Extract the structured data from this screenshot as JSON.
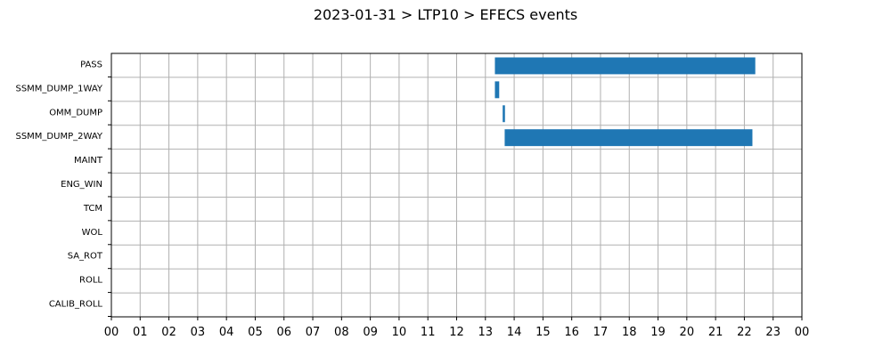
{
  "chart_data": {
    "type": "bar",
    "orientation": "horizontal-timeline",
    "title": "2023-01-31 > LTP10 > EFECS events",
    "xlabel": "",
    "ylabel": "",
    "xlim": [
      0,
      24
    ],
    "x_ticks": [
      0,
      1,
      2,
      3,
      4,
      5,
      6,
      7,
      8,
      9,
      10,
      11,
      12,
      13,
      14,
      15,
      16,
      17,
      18,
      19,
      20,
      21,
      22,
      23,
      24
    ],
    "x_tick_labels": [
      "00",
      "01",
      "02",
      "03",
      "04",
      "05",
      "06",
      "07",
      "08",
      "09",
      "10",
      "11",
      "12",
      "13",
      "14",
      "15",
      "16",
      "17",
      "18",
      "19",
      "20",
      "21",
      "22",
      "23",
      "00"
    ],
    "categories": [
      "PASS",
      "SSMM_DUMP_1WAY",
      "OMM_DUMP",
      "SSMM_DUMP_2WAY",
      "MAINT",
      "ENG_WIN",
      "TCM",
      "WOL",
      "SA_ROT",
      "ROLL",
      "CALIB_ROLL"
    ],
    "events": [
      {
        "category": "PASS",
        "start": 13.33,
        "end": 22.38
      },
      {
        "category": "SSMM_DUMP_1WAY",
        "start": 13.33,
        "end": 13.48
      },
      {
        "category": "OMM_DUMP",
        "start": 13.6,
        "end": 13.68
      },
      {
        "category": "SSMM_DUMP_2WAY",
        "start": 13.67,
        "end": 22.28
      }
    ],
    "grid": true,
    "legend": "none",
    "bar_color": "#1f77b4"
  }
}
